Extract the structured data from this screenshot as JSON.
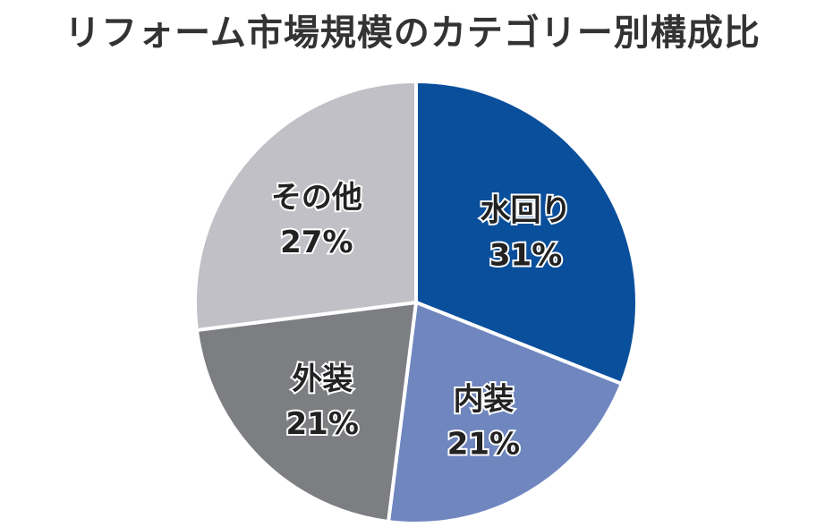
{
  "chart_data": {
    "type": "pie",
    "title": "リフォーム市場規模のカテゴリー別構成比",
    "slices": [
      {
        "label": "水回り",
        "value": 31,
        "display": "31%",
        "color": "#0a4f9c"
      },
      {
        "label": "内装",
        "value": 21,
        "display": "21%",
        "color": "#6f86bf"
      },
      {
        "label": "外装",
        "value": 21,
        "display": "21%",
        "color": "#7c7e82"
      },
      {
        "label": "その他",
        "value": 27,
        "display": "27%",
        "color": "#c0c0c6"
      }
    ],
    "start": "top",
    "direction": "clockwise",
    "legend": "none"
  }
}
